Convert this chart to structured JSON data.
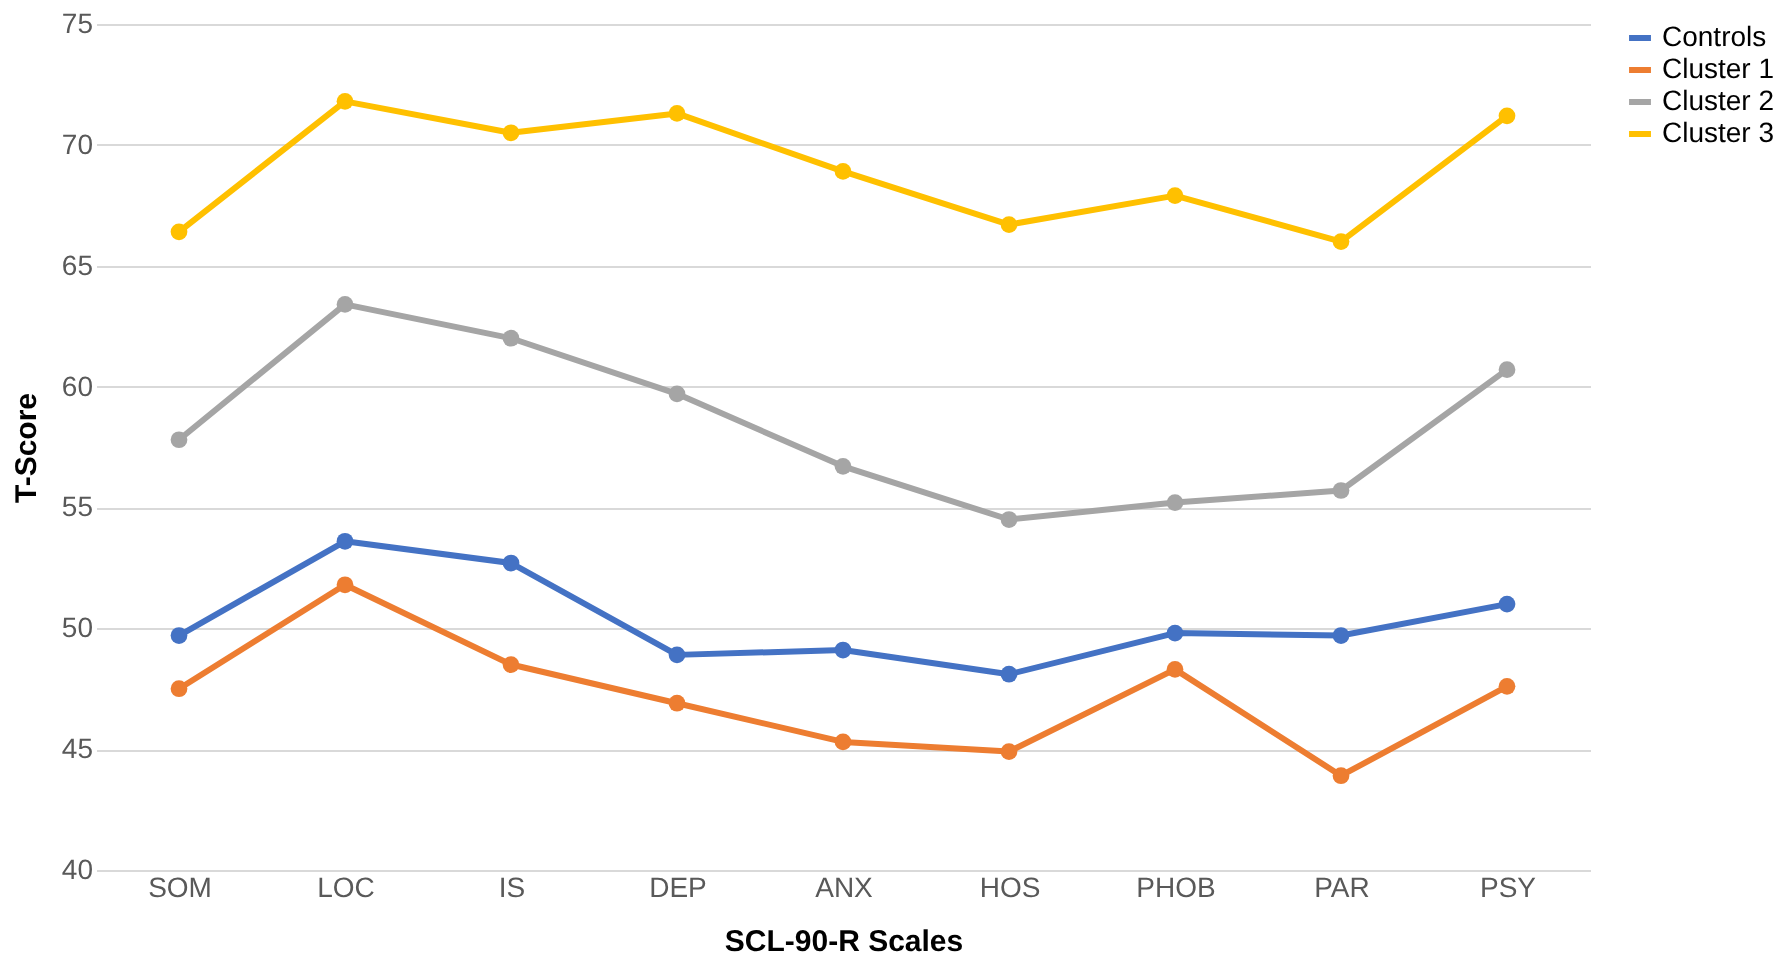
{
  "chart_data": {
    "type": "line",
    "xlabel": "SCL-90-R Scales",
    "ylabel": "T-Score",
    "categories": [
      "SOM",
      "LOC",
      "IS",
      "DEP",
      "ANX",
      "HOS",
      "PHOB",
      "PAR",
      "PSY"
    ],
    "ylim": [
      40,
      75
    ],
    "yticks": [
      40,
      45,
      50,
      55,
      60,
      65,
      70,
      75
    ],
    "grid": "y",
    "legend": "right",
    "marker": "circle",
    "line_style": "solid",
    "series": [
      {
        "name": "Controls",
        "color": "#4472c4",
        "values": [
          49.7,
          53.6,
          52.7,
          48.9,
          49.1,
          48.1,
          49.8,
          49.7,
          51.0
        ]
      },
      {
        "name": "Cluster 1",
        "color": "#ed7d31",
        "values": [
          47.5,
          51.8,
          48.5,
          46.9,
          45.3,
          44.9,
          48.3,
          43.9,
          47.6
        ]
      },
      {
        "name": "Cluster 2",
        "color": "#a5a5a5",
        "values": [
          57.8,
          63.4,
          62.0,
          59.7,
          56.7,
          54.5,
          55.2,
          55.7,
          60.7
        ]
      },
      {
        "name": "Cluster 3",
        "color": "#ffc000",
        "values": [
          66.4,
          71.8,
          70.5,
          71.3,
          68.9,
          66.7,
          67.9,
          66.0,
          71.2
        ]
      }
    ]
  }
}
